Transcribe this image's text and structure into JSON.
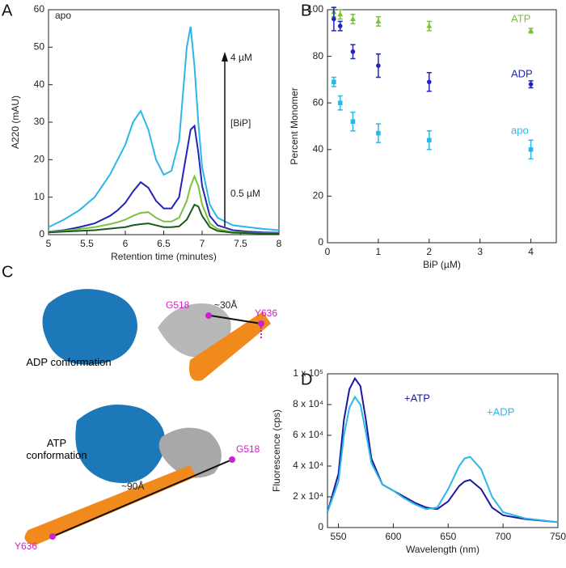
{
  "chart_data": [
    {
      "type": "line",
      "panel": "A",
      "xlabel": "Retention time (minutes)",
      "ylabel": "A220 (mAU)",
      "annotations": [
        "apo",
        "4 µM",
        "[BiP]",
        "0.5 µM"
      ],
      "x": [
        5.0,
        5.2,
        5.4,
        5.6,
        5.8,
        5.9,
        6.0,
        6.1,
        6.2,
        6.3,
        6.4,
        6.5,
        6.6,
        6.7,
        6.8,
        6.85,
        6.9,
        6.95,
        7.0,
        7.1,
        7.2,
        7.4,
        7.6,
        7.8,
        8.0
      ],
      "series": [
        {
          "color": "#2cb7e8",
          "values": [
            2,
            4,
            6.5,
            10,
            16,
            20,
            24,
            30,
            33,
            28,
            20,
            16,
            17,
            25,
            50,
            55.5,
            45,
            30,
            18,
            8,
            4.5,
            2.5,
            2,
            1.5,
            1.2
          ]
        },
        {
          "color": "#2323b8",
          "values": [
            0.8,
            1.2,
            2,
            3,
            5,
            6.5,
            8.5,
            11.5,
            14,
            12.5,
            9,
            7,
            7,
            10,
            22,
            28,
            29,
            22,
            13,
            5,
            2.5,
            1.2,
            0.8,
            0.6,
            0.5
          ]
        },
        {
          "color": "#7cc13a",
          "values": [
            0.8,
            1,
            1.5,
            2,
            2.8,
            3.3,
            4,
            5,
            5.8,
            6,
            4.5,
            3.5,
            3.5,
            4.5,
            9,
            13,
            15.5,
            13,
            8,
            3,
            1.5,
            0.7,
            0.5,
            0.4,
            0.4
          ]
        },
        {
          "color": "#1a5a1a",
          "values": [
            0.6,
            0.8,
            1,
            1.2,
            1.6,
            1.8,
            2,
            2.5,
            2.8,
            3,
            2.5,
            2,
            2,
            2.2,
            4,
            6,
            8,
            7.5,
            5,
            2,
            1,
            0.5,
            0.4,
            0.3,
            0.3
          ]
        }
      ],
      "xlim": [
        5,
        8
      ],
      "xticks": [
        5,
        5.5,
        6,
        6.5,
        7,
        7.5,
        8
      ],
      "ylim": [
        0,
        60
      ],
      "yticks": [
        0,
        10,
        20,
        30,
        40,
        50,
        60
      ]
    },
    {
      "type": "scatter",
      "panel": "B",
      "xlabel": "BiP (µM)",
      "ylabel": "Percent Monomer",
      "series": [
        {
          "name": "ATP",
          "color": "#7cc13a",
          "marker": "triangle",
          "x": [
            0.125,
            0.25,
            0.5,
            1,
            2,
            4
          ],
          "values": [
            99,
            98,
            96,
            95,
            93,
            91
          ],
          "errors": [
            2,
            2,
            2,
            2,
            2,
            1
          ]
        },
        {
          "name": "ADP",
          "color": "#2323b8",
          "marker": "circle",
          "x": [
            0.125,
            0.25,
            0.5,
            1,
            2,
            4
          ],
          "values": [
            96,
            93,
            82,
            76,
            69,
            68
          ],
          "errors": [
            5,
            2,
            3,
            5,
            4,
            1.5
          ]
        },
        {
          "name": "apo",
          "color": "#2cb7e8",
          "marker": "square",
          "x": [
            0.125,
            0.25,
            0.5,
            1,
            2,
            4
          ],
          "values": [
            69,
            60,
            52,
            47,
            44,
            40
          ],
          "errors": [
            2,
            3,
            4,
            4,
            4,
            4
          ]
        }
      ],
      "xlim": [
        0,
        4.5
      ],
      "xticks": [
        0,
        1,
        2,
        3,
        4
      ],
      "ylim": [
        0,
        100
      ],
      "yticks": [
        0,
        20,
        40,
        60,
        80,
        100
      ]
    },
    {
      "type": "line",
      "panel": "D",
      "xlabel": "Wavelength (nm)",
      "ylabel": "Fluorescence (cps)",
      "x": [
        540,
        550,
        555,
        560,
        565,
        570,
        575,
        580,
        590,
        600,
        610,
        620,
        630,
        640,
        650,
        660,
        665,
        670,
        680,
        690,
        700,
        720,
        750
      ],
      "series": [
        {
          "name": "+ATP",
          "color": "#1a1aa0",
          "values": [
            10000,
            35000,
            70000,
            90000,
            97000,
            92000,
            70000,
            45000,
            28000,
            24000,
            20000,
            16000,
            13000,
            12000,
            17000,
            27000,
            30000,
            31000,
            25000,
            13000,
            8000,
            5500,
            3500
          ]
        },
        {
          "name": "+ADP",
          "color": "#2cb7e8",
          "values": [
            10000,
            30000,
            60000,
            78000,
            85000,
            80000,
            62000,
            42000,
            28000,
            24000,
            19000,
            15000,
            12000,
            13000,
            25000,
            40000,
            45000,
            46000,
            38000,
            20000,
            10000,
            6000,
            3500
          ]
        }
      ],
      "xlim": [
        540,
        750
      ],
      "xticks": [
        550,
        600,
        650,
        700,
        750
      ],
      "ylim": [
        0,
        100000
      ],
      "yticks": [
        0,
        {
          "value": 20000,
          "label": "2 x 10⁴"
        },
        {
          "value": 40000,
          "label": "4 x 10⁴"
        },
        {
          "value": 60000,
          "label": "6 x 10⁴"
        },
        {
          "value": 80000,
          "label": "8 x 10⁴"
        },
        {
          "value": 100000,
          "label": "1 x 10⁵"
        }
      ]
    }
  ],
  "panel_c": {
    "panel": "C",
    "adp": {
      "label": "ADP conformation",
      "start": "G518",
      "distance": "~30Å",
      "end": "Y636"
    },
    "atp": {
      "label": "ATP conformation",
      "start": "G518",
      "distance": "~90Å",
      "end": "Y636"
    }
  }
}
